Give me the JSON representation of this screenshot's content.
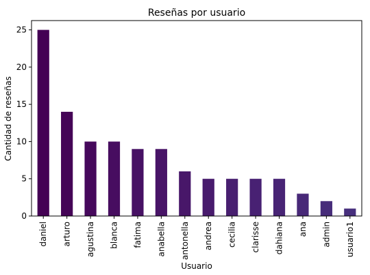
{
  "chart_data": {
    "type": "bar",
    "title": "Reseñas por usuario",
    "xlabel": "Usuario",
    "ylabel": "Cantidad de reseñas",
    "categories": [
      "daniel",
      "arturo",
      "agustina",
      "blanca",
      "fatima",
      "anabella",
      "antonella",
      "andrea",
      "cecilia",
      "clarisse",
      "dahiana",
      "ana",
      "admin",
      "usuario1"
    ],
    "values": [
      25,
      14,
      10,
      10,
      9,
      9,
      6,
      5,
      5,
      5,
      5,
      3,
      2,
      1
    ],
    "colors": [
      "#440154",
      "#450457",
      "#46085c",
      "#470d60",
      "#471164",
      "#481467",
      "#481769",
      "#481b6d",
      "#481f70",
      "#482173",
      "#482475",
      "#482878",
      "#472c7a",
      "#472f7d"
    ],
    "yticks": [
      0,
      5,
      10,
      15,
      20,
      25
    ],
    "ylim": [
      0,
      26.25
    ],
    "grid": false,
    "legend": false
  }
}
